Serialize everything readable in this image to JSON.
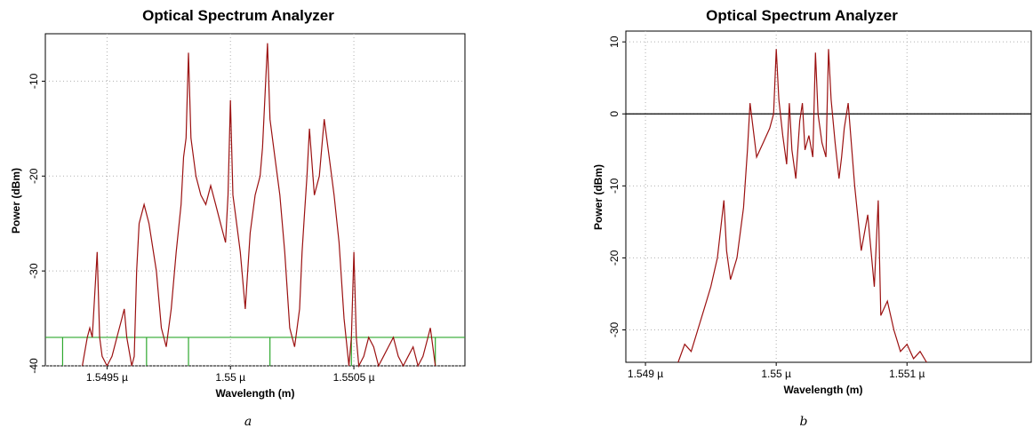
{
  "chart_data": [
    {
      "id": "a",
      "type": "line",
      "title": "Optical Spectrum Analyzer",
      "xlabel": "Wavelength (m)",
      "ylabel": "Power (dBm)",
      "caption": "a",
      "xlim": [
        1.54925,
        1.55095
      ],
      "ylim": [
        -40,
        -5
      ],
      "x_ticks": [
        1.5495,
        1.55,
        1.5505
      ],
      "x_tick_labels": [
        "1.5495 µ",
        "1.55 µ",
        "1.5505 µ"
      ],
      "y_ticks": [
        -10,
        -20,
        -30,
        -40
      ],
      "y_tick_labels": [
        "-10",
        "-20",
        "-30",
        "-40"
      ],
      "grid": true,
      "line_color": "#9b1111",
      "marker_color": "#2ea82e",
      "marker_level": -37,
      "marker_x": [
        1.54932,
        1.54966,
        1.54983,
        1.55016,
        1.55049,
        1.55083
      ],
      "series": [
        {
          "x": [
            1.5494,
            1.54942,
            1.54943,
            1.54944,
            1.54946,
            1.54947,
            1.54948,
            1.5495,
            1.54952,
            1.54954,
            1.54956,
            1.54957,
            1.54958,
            1.5496,
            1.54961,
            1.54962,
            1.54963,
            1.54965,
            1.54967,
            1.5497,
            1.54972,
            1.54974,
            1.54976,
            1.54978,
            1.5498,
            1.54981,
            1.54982,
            1.54983,
            1.54984,
            1.54986,
            1.54988,
            1.5499,
            1.54992,
            1.54994,
            1.54996,
            1.54998,
            1.54999,
            1.55,
            1.55001,
            1.55002,
            1.55004,
            1.55006,
            1.55008,
            1.5501,
            1.55012,
            1.55013,
            1.55015,
            1.55016,
            1.55018,
            1.5502,
            1.55022,
            1.55024,
            1.55026,
            1.55028,
            1.55029,
            1.5503,
            1.55031,
            1.55032,
            1.55034,
            1.55036,
            1.55038,
            1.5504,
            1.55042,
            1.55044,
            1.55046,
            1.55048,
            1.55049,
            1.5505,
            1.55051,
            1.55052,
            1.55054,
            1.55056,
            1.55058,
            1.5506,
            1.55062,
            1.55064,
            1.55066,
            1.55068,
            1.5507,
            1.55072,
            1.55074,
            1.55076,
            1.55078,
            1.55079,
            1.5508,
            1.55081,
            1.55082,
            1.55083
          ],
          "y": [
            -40,
            -37,
            -36,
            -37,
            -28,
            -37,
            -39,
            -40,
            -39,
            -37,
            -35,
            -34,
            -37,
            -40,
            -39,
            -30,
            -25,
            -23,
            -25,
            -30,
            -36,
            -38,
            -34,
            -28,
            -23,
            -18,
            -16,
            -7,
            -16,
            -20,
            -22,
            -23,
            -21,
            -23,
            -25,
            -27,
            -22,
            -12,
            -22,
            -24,
            -28,
            -34,
            -26,
            -22,
            -20,
            -17,
            -6,
            -14,
            -18,
            -22,
            -28,
            -36,
            -38,
            -34,
            -28,
            -24,
            -20,
            -15,
            -22,
            -20,
            -14,
            -18,
            -22,
            -27,
            -35,
            -40,
            -37,
            -28,
            -37,
            -40,
            -39,
            -37,
            -38,
            -40,
            -39,
            -38,
            -37,
            -39,
            -40,
            -39,
            -38,
            -40,
            -39,
            -38,
            -37,
            -36,
            -38,
            -40
          ]
        }
      ]
    },
    {
      "id": "b",
      "type": "line",
      "title": "Optical Spectrum Analyzer",
      "xlabel": "Wavelength (m)",
      "ylabel": "Power (dBm)",
      "caption": "b",
      "xlim": [
        1.54885,
        1.55195
      ],
      "ylim": [
        -34.5,
        11.5
      ],
      "x_ticks": [
        1.549,
        1.55,
        1.551
      ],
      "x_tick_labels": [
        "1.549 µ",
        "1.55 µ",
        "1.551 µ"
      ],
      "y_ticks": [
        10,
        0,
        -10,
        -20,
        -30
      ],
      "y_tick_labels": [
        "10",
        "0",
        "-10",
        "-20",
        "-30"
      ],
      "grid": true,
      "zero_line": 0,
      "line_color": "#9b1111",
      "series": [
        {
          "x": [
            1.54925,
            1.5493,
            1.54935,
            1.5494,
            1.54945,
            1.5495,
            1.54955,
            1.5496,
            1.54962,
            1.54965,
            1.5497,
            1.54975,
            1.54978,
            1.5498,
            1.54985,
            1.5499,
            1.54995,
            1.54998,
            1.55,
            1.55002,
            1.55005,
            1.55008,
            1.5501,
            1.55012,
            1.55015,
            1.55018,
            1.5502,
            1.55022,
            1.55025,
            1.55028,
            1.5503,
            1.55032,
            1.55035,
            1.55038,
            1.5504,
            1.55042,
            1.55045,
            1.55048,
            1.5505,
            1.55052,
            1.55055,
            1.5506,
            1.55065,
            1.5507,
            1.55075,
            1.55078,
            1.5508,
            1.55085,
            1.5509,
            1.55095,
            1.551,
            1.55105,
            1.5511,
            1.55115
          ],
          "y": [
            -34.5,
            -32,
            -33,
            -30,
            -27,
            -24,
            -20,
            -12,
            -19,
            -23,
            -20,
            -13,
            -5,
            1.5,
            -6,
            -4,
            -2,
            0,
            9,
            2,
            -3,
            -7,
            1.5,
            -5,
            -9,
            -1,
            1.5,
            -5,
            -3,
            -6,
            8.5,
            0,
            -4,
            -6,
            9,
            2,
            -4,
            -9,
            -6,
            -2,
            1.5,
            -10,
            -19,
            -14,
            -24,
            -12,
            -28,
            -26,
            -30,
            -33,
            -32,
            -34,
            -33,
            -34.5
          ]
        }
      ]
    }
  ]
}
